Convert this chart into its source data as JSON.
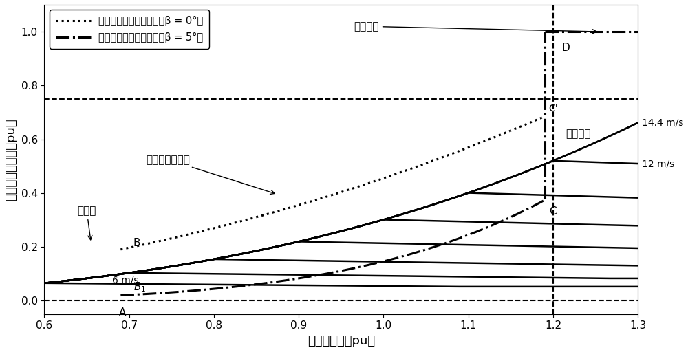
{
  "xlim": [
    0.6,
    1.3
  ],
  "ylim": [
    -0.05,
    1.1
  ],
  "xlabel": "风力机转速（pu）",
  "ylabel": "风力机机械功率（pu）",
  "xticks": [
    0.6,
    0.7,
    0.8,
    0.9,
    1.0,
    1.1,
    1.2,
    1.3
  ],
  "yticks": [
    0.0,
    0.2,
    0.4,
    0.6,
    0.8,
    1.0
  ],
  "label_beta0": "最优转速功率跟踪曲线（β = 0°）",
  "label_beta5": "最优转速功率跟踪曲线（β = 5°）",
  "text_qidong": "启动区",
  "text_zuida": "最大功率跟踪区",
  "text_hengzhuansu": "恒转速区",
  "text_henggonglv": "恒功率区",
  "text_6ms": "6 m/s",
  "text_12ms": "12 m/s",
  "text_144ms": "14.4 m/s",
  "wind_speeds": [
    6,
    7,
    8,
    9,
    10,
    11,
    12,
    13,
    14.4
  ],
  "fig_width": 10.0,
  "fig_height": 5.12,
  "dpi": 100
}
